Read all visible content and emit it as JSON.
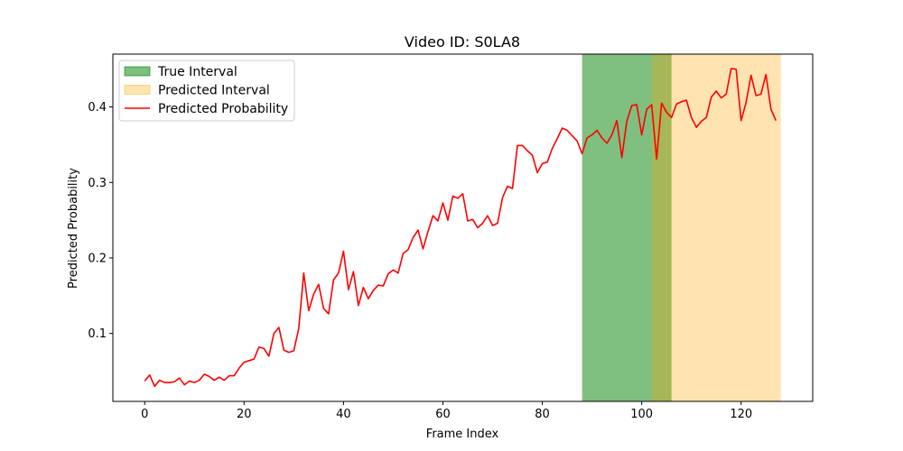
{
  "chart_data": {
    "type": "line",
    "title": "Video ID: S0LA8",
    "xlabel": "Frame Index",
    "ylabel": "Predicted Probability",
    "xlim": [
      -6.4,
      134.4
    ],
    "ylim": [
      0.01,
      0.47
    ],
    "xticks": [
      0,
      20,
      40,
      60,
      80,
      100,
      120
    ],
    "yticks": [
      0.1,
      0.2,
      0.3,
      0.4
    ],
    "grid": false,
    "legend_position": "top-left",
    "intervals": [
      {
        "name": "True Interval",
        "start": 88,
        "end": 106,
        "color": "#008000",
        "opacity": 0.5
      },
      {
        "name": "Predicted Interval",
        "start": 102,
        "end": 128,
        "color": "#FFA500",
        "opacity": 0.3
      }
    ],
    "series": [
      {
        "name": "Predicted Probability",
        "color": "#FF0000",
        "x": [
          0,
          1,
          2,
          3,
          4,
          5,
          6,
          7,
          8,
          9,
          10,
          11,
          12,
          13,
          14,
          15,
          16,
          17,
          18,
          19,
          20,
          21,
          22,
          23,
          24,
          25,
          26,
          27,
          28,
          29,
          30,
          31,
          32,
          33,
          34,
          35,
          36,
          37,
          38,
          39,
          40,
          41,
          42,
          43,
          44,
          45,
          46,
          47,
          48,
          49,
          50,
          51,
          52,
          53,
          54,
          55,
          56,
          57,
          58,
          59,
          60,
          61,
          62,
          63,
          64,
          65,
          66,
          67,
          68,
          69,
          70,
          71,
          72,
          73,
          74,
          75,
          76,
          77,
          78,
          79,
          80,
          81,
          82,
          83,
          84,
          85,
          86,
          87,
          88,
          89,
          90,
          91,
          92,
          93,
          94,
          95,
          96,
          97,
          98,
          99,
          100,
          101,
          102,
          103,
          104,
          105,
          106,
          107,
          108,
          109,
          110,
          111,
          112,
          113,
          114,
          115,
          116,
          117,
          118,
          119,
          120,
          121,
          122,
          123,
          124,
          125,
          126,
          127
        ],
        "values": [
          0.037,
          0.045,
          0.03,
          0.038,
          0.035,
          0.035,
          0.036,
          0.041,
          0.032,
          0.037,
          0.035,
          0.038,
          0.046,
          0.043,
          0.038,
          0.042,
          0.038,
          0.044,
          0.044,
          0.054,
          0.062,
          0.064,
          0.066,
          0.082,
          0.08,
          0.07,
          0.1,
          0.108,
          0.078,
          0.075,
          0.077,
          0.107,
          0.18,
          0.13,
          0.152,
          0.165,
          0.133,
          0.126,
          0.171,
          0.18,
          0.209,
          0.158,
          0.182,
          0.137,
          0.161,
          0.146,
          0.157,
          0.164,
          0.163,
          0.179,
          0.184,
          0.18,
          0.206,
          0.211,
          0.227,
          0.237,
          0.212,
          0.235,
          0.256,
          0.249,
          0.273,
          0.25,
          0.282,
          0.279,
          0.285,
          0.249,
          0.251,
          0.24,
          0.246,
          0.256,
          0.243,
          0.246,
          0.28,
          0.295,
          0.292,
          0.349,
          0.349,
          0.342,
          0.336,
          0.313,
          0.325,
          0.327,
          0.345,
          0.358,
          0.372,
          0.369,
          0.362,
          0.355,
          0.338,
          0.359,
          0.363,
          0.369,
          0.359,
          0.352,
          0.363,
          0.382,
          0.333,
          0.381,
          0.402,
          0.403,
          0.363,
          0.397,
          0.403,
          0.331,
          0.405,
          0.393,
          0.386,
          0.404,
          0.407,
          0.409,
          0.386,
          0.373,
          0.381,
          0.386,
          0.413,
          0.421,
          0.412,
          0.417,
          0.451,
          0.45,
          0.382,
          0.406,
          0.442,
          0.415,
          0.417,
          0.443,
          0.397,
          0.382
        ]
      }
    ]
  }
}
